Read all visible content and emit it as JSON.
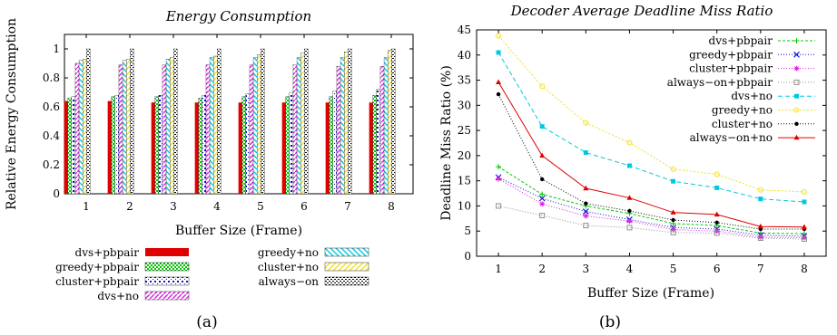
{
  "colors": {
    "dvs+pbpair": "#e00000",
    "greedy+pbpair": "#00c800",
    "cluster+pbpair": "#1010d0",
    "always-on+pbpair": "#909090",
    "dvs+no": "#00c8e0",
    "greedy+no": "#f0e020",
    "cluster+no": "#000000",
    "always-on+no": "#e00000",
    "dvs+no_bar": "#e020e0"
  },
  "chart_data": [
    {
      "type": "bar",
      "title": "Energy Consumption",
      "xlabel": "Buffer Size (Frame)",
      "ylabel": "Relative Energy Consumption",
      "ylim": [
        0,
        1.1
      ],
      "yticks": [
        "0",
        "0.2",
        "0.4",
        "0.6",
        "0.8",
        "1"
      ],
      "categories": [
        "1",
        "2",
        "3",
        "4",
        "5",
        "6",
        "7",
        "8"
      ],
      "caption": "(a)",
      "legend_placement": "bottom",
      "series": [
        {
          "name": "dvs+pbpair",
          "values": [
            0.64,
            0.64,
            0.63,
            0.63,
            0.63,
            0.63,
            0.63,
            0.63
          ]
        },
        {
          "name": "greedy+pbpair",
          "values": [
            0.66,
            0.67,
            0.67,
            0.66,
            0.67,
            0.67,
            0.67,
            0.68
          ]
        },
        {
          "name": "cluster+pbpair",
          "values": [
            0.67,
            0.68,
            0.68,
            0.68,
            0.69,
            0.7,
            0.71,
            0.72
          ]
        },
        {
          "name": "dvs+no",
          "values": [
            0.9,
            0.89,
            0.89,
            0.89,
            0.89,
            0.89,
            0.88,
            0.88
          ]
        },
        {
          "name": "greedy+no",
          "values": [
            0.92,
            0.92,
            0.93,
            0.94,
            0.94,
            0.94,
            0.94,
            0.94
          ]
        },
        {
          "name": "cluster+no",
          "values": [
            0.93,
            0.93,
            0.94,
            0.95,
            0.96,
            0.97,
            0.98,
            0.99
          ]
        },
        {
          "name": "always−on",
          "values": [
            1,
            1,
            1,
            1,
            1,
            1,
            1,
            1
          ]
        }
      ]
    },
    {
      "type": "line",
      "title": "Decoder Average Deadline Miss Ratio",
      "xlabel": "Buffer Size (Frame)",
      "ylabel": "Deadline Miss Ratio (%)",
      "ylim": [
        0,
        45
      ],
      "xlim": [
        0.5,
        8.5
      ],
      "yticks": [
        "0",
        "5",
        "10",
        "15",
        "20",
        "25",
        "30",
        "35",
        "40",
        "45"
      ],
      "xticks": [
        "1",
        "2",
        "3",
        "4",
        "5",
        "6",
        "7",
        "8"
      ],
      "x": [
        1,
        2,
        3,
        4,
        5,
        6,
        7,
        8
      ],
      "caption": "(b)",
      "legend_placement": "top-right",
      "series": [
        {
          "name": "dvs+pbpair",
          "values": [
            17.8,
            12.3,
            10.0,
            8.5,
            6.5,
            6.1,
            4.6,
            4.5
          ]
        },
        {
          "name": "greedy+pbpair",
          "values": [
            15.7,
            11.5,
            8.9,
            7.3,
            5.7,
            5.4,
            4.2,
            4.0
          ]
        },
        {
          "name": "cluster+pbpair",
          "values": [
            15.4,
            10.4,
            8.0,
            7.0,
            5.3,
            5.0,
            3.8,
            3.7
          ]
        },
        {
          "name": "always−on+pbpair",
          "values": [
            10.0,
            8.1,
            6.1,
            5.7,
            4.7,
            4.6,
            3.6,
            3.4
          ]
        },
        {
          "name": "dvs+no",
          "values": [
            40.5,
            25.8,
            20.6,
            18.0,
            14.9,
            13.6,
            11.4,
            10.8
          ]
        },
        {
          "name": "greedy+no",
          "values": [
            43.8,
            33.8,
            26.5,
            22.6,
            17.3,
            16.3,
            13.2,
            12.8
          ]
        },
        {
          "name": "cluster+no",
          "values": [
            32.2,
            15.3,
            10.5,
            9.0,
            7.2,
            6.7,
            5.4,
            5.4
          ]
        },
        {
          "name": "always−on+no",
          "values": [
            34.6,
            20.0,
            13.5,
            11.6,
            8.7,
            8.3,
            5.9,
            5.8
          ]
        }
      ]
    }
  ]
}
